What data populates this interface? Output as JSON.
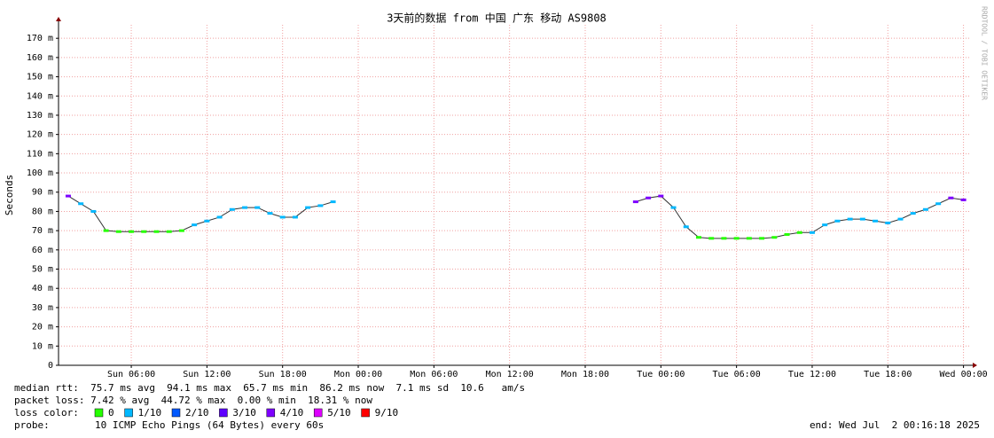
{
  "chart_data": {
    "type": "line",
    "title": "3天前的数据 from 中国 广东 移动 AS9808",
    "y_label": "Seconds",
    "credit": "RRDTOOL / TOBI OETIKER",
    "xlim": [
      0.23,
      72.45
    ],
    "xticks": [
      {
        "value": 6,
        "label": "Sun 06:00"
      },
      {
        "value": 12,
        "label": "Sun 12:00"
      },
      {
        "value": 18,
        "label": "Sun 18:00"
      },
      {
        "value": 24,
        "label": "Mon 00:00"
      },
      {
        "value": 30,
        "label": "Mon 06:00"
      },
      {
        "value": 36,
        "label": "Mon 12:00"
      },
      {
        "value": 42,
        "label": "Mon 18:00"
      },
      {
        "value": 48,
        "label": "Tue 00:00"
      },
      {
        "value": 54,
        "label": "Tue 06:00"
      },
      {
        "value": 60,
        "label": "Tue 12:00"
      },
      {
        "value": 66,
        "label": "Tue 18:00"
      },
      {
        "value": 72,
        "label": "Wed 00:00"
      }
    ],
    "ylim": [
      0,
      0.177
    ],
    "yticks": [
      0,
      {
        "value": 0.01,
        "label": "10 m"
      },
      {
        "value": 0.02,
        "label": "20 m"
      },
      {
        "value": 0.03,
        "label": "30 m"
      },
      {
        "value": 0.04,
        "label": "40 m"
      },
      {
        "value": 0.05,
        "label": "50 m"
      },
      {
        "value": 0.06,
        "label": "60 m"
      },
      {
        "value": 0.07,
        "label": "70 m"
      },
      {
        "value": 0.08,
        "label": "80 m"
      },
      {
        "value": 0.09,
        "label": "90 m"
      },
      {
        "value": 0.1,
        "label": "100 m"
      },
      {
        "value": 0.11,
        "label": "110 m"
      },
      {
        "value": 0.12,
        "label": "120 m"
      },
      {
        "value": 0.13,
        "label": "130 m"
      },
      {
        "value": 0.14,
        "label": "140 m"
      },
      {
        "value": 0.15,
        "label": "150 m"
      },
      {
        "value": 0.16,
        "label": "160 m"
      },
      {
        "value": 0.17,
        "label": "170 m"
      }
    ],
    "grid": true,
    "x": [
      1,
      2,
      3,
      4,
      5,
      6,
      7,
      8,
      9,
      10,
      11,
      12,
      13,
      14,
      15,
      16,
      17,
      18,
      19,
      20,
      21,
      22,
      23,
      46,
      47,
      48,
      49,
      50,
      51,
      52,
      53,
      54,
      55,
      56,
      57,
      58,
      59,
      60,
      61,
      62,
      63,
      64,
      65,
      66,
      67,
      68,
      69,
      70,
      71,
      72
    ],
    "series": [
      {
        "name": "median rtt",
        "values": [
          0.088,
          0.084,
          0.08,
          0.07,
          0.0695,
          0.0695,
          0.0695,
          0.0695,
          0.0695,
          0.07,
          0.073,
          0.075,
          0.077,
          0.081,
          0.082,
          0.082,
          0.079,
          0.077,
          0.077,
          0.082,
          0.083,
          0.085,
          null,
          0.085,
          0.087,
          0.088,
          0.082,
          0.072,
          0.0665,
          0.066,
          0.066,
          0.066,
          0.066,
          0.066,
          0.0665,
          0.068,
          0.069,
          0.069,
          0.073,
          0.075,
          0.076,
          0.076,
          0.075,
          0.074,
          0.076,
          0.079,
          0.081,
          0.084,
          0.087,
          0.086
        ],
        "loss": [
          4,
          1,
          1,
          0,
          0,
          0,
          0,
          0,
          0,
          0,
          1,
          1,
          1,
          1,
          1,
          1,
          1,
          1,
          1,
          1,
          1,
          1,
          null,
          4,
          4,
          4,
          1,
          1,
          0,
          0,
          0,
          0,
          0,
          0,
          0,
          0,
          0,
          1,
          1,
          1,
          1,
          1,
          1,
          1,
          1,
          1,
          1,
          1,
          4,
          4
        ]
      }
    ],
    "loss_legend": {
      "label": "loss color:",
      "items": [
        {
          "name": "0",
          "color": "#26ff00"
        },
        {
          "name": "1/10",
          "color": "#00b8ff"
        },
        {
          "name": "2/10",
          "color": "#0059ff"
        },
        {
          "name": "3/10",
          "color": "#5e00ff"
        },
        {
          "name": "4/10",
          "color": "#7e00ff"
        },
        {
          "name": "5/10",
          "color": "#dd00ff"
        },
        {
          "name": "9/10",
          "color": "#ff0000"
        }
      ]
    },
    "stats": [
      "median rtt:  75.7 ms avg  94.1 ms max  65.7 ms min  86.2 ms now  7.1 ms sd  10.6   am/s",
      "packet loss: 7.42 % avg  44.72 % max  0.00 % min  18.31 % now"
    ],
    "probe_label": "probe:",
    "probe": "10 ICMP Echo Pings (64 Bytes) every 60s",
    "end": "end: Wed Jul  2 00:16:18 2025"
  }
}
